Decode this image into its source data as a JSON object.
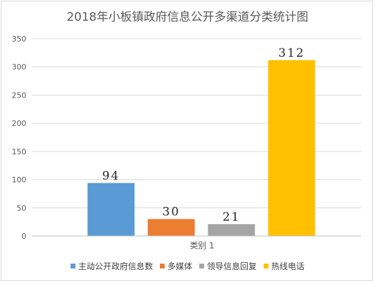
{
  "chart_data": {
    "type": "bar",
    "title": "2018年小板镇政府信息公开多渠道分类统计图",
    "categories": [
      "类别 1"
    ],
    "series": [
      {
        "name": "主动公开政府信息数",
        "values": [
          94
        ],
        "color": "#5b9bd5"
      },
      {
        "name": "多媒体",
        "values": [
          30
        ],
        "color": "#ed7d31"
      },
      {
        "name": "领导信息回复",
        "values": [
          21
        ],
        "color": "#a5a5a5"
      },
      {
        "name": "热线电话",
        "values": [
          312
        ],
        "color": "#ffc000"
      }
    ],
    "ylim": [
      0,
      350
    ],
    "yticks": [
      0,
      50,
      100,
      150,
      200,
      250,
      300,
      350
    ],
    "grid": true,
    "legend": "bottom",
    "data_labels": true
  }
}
